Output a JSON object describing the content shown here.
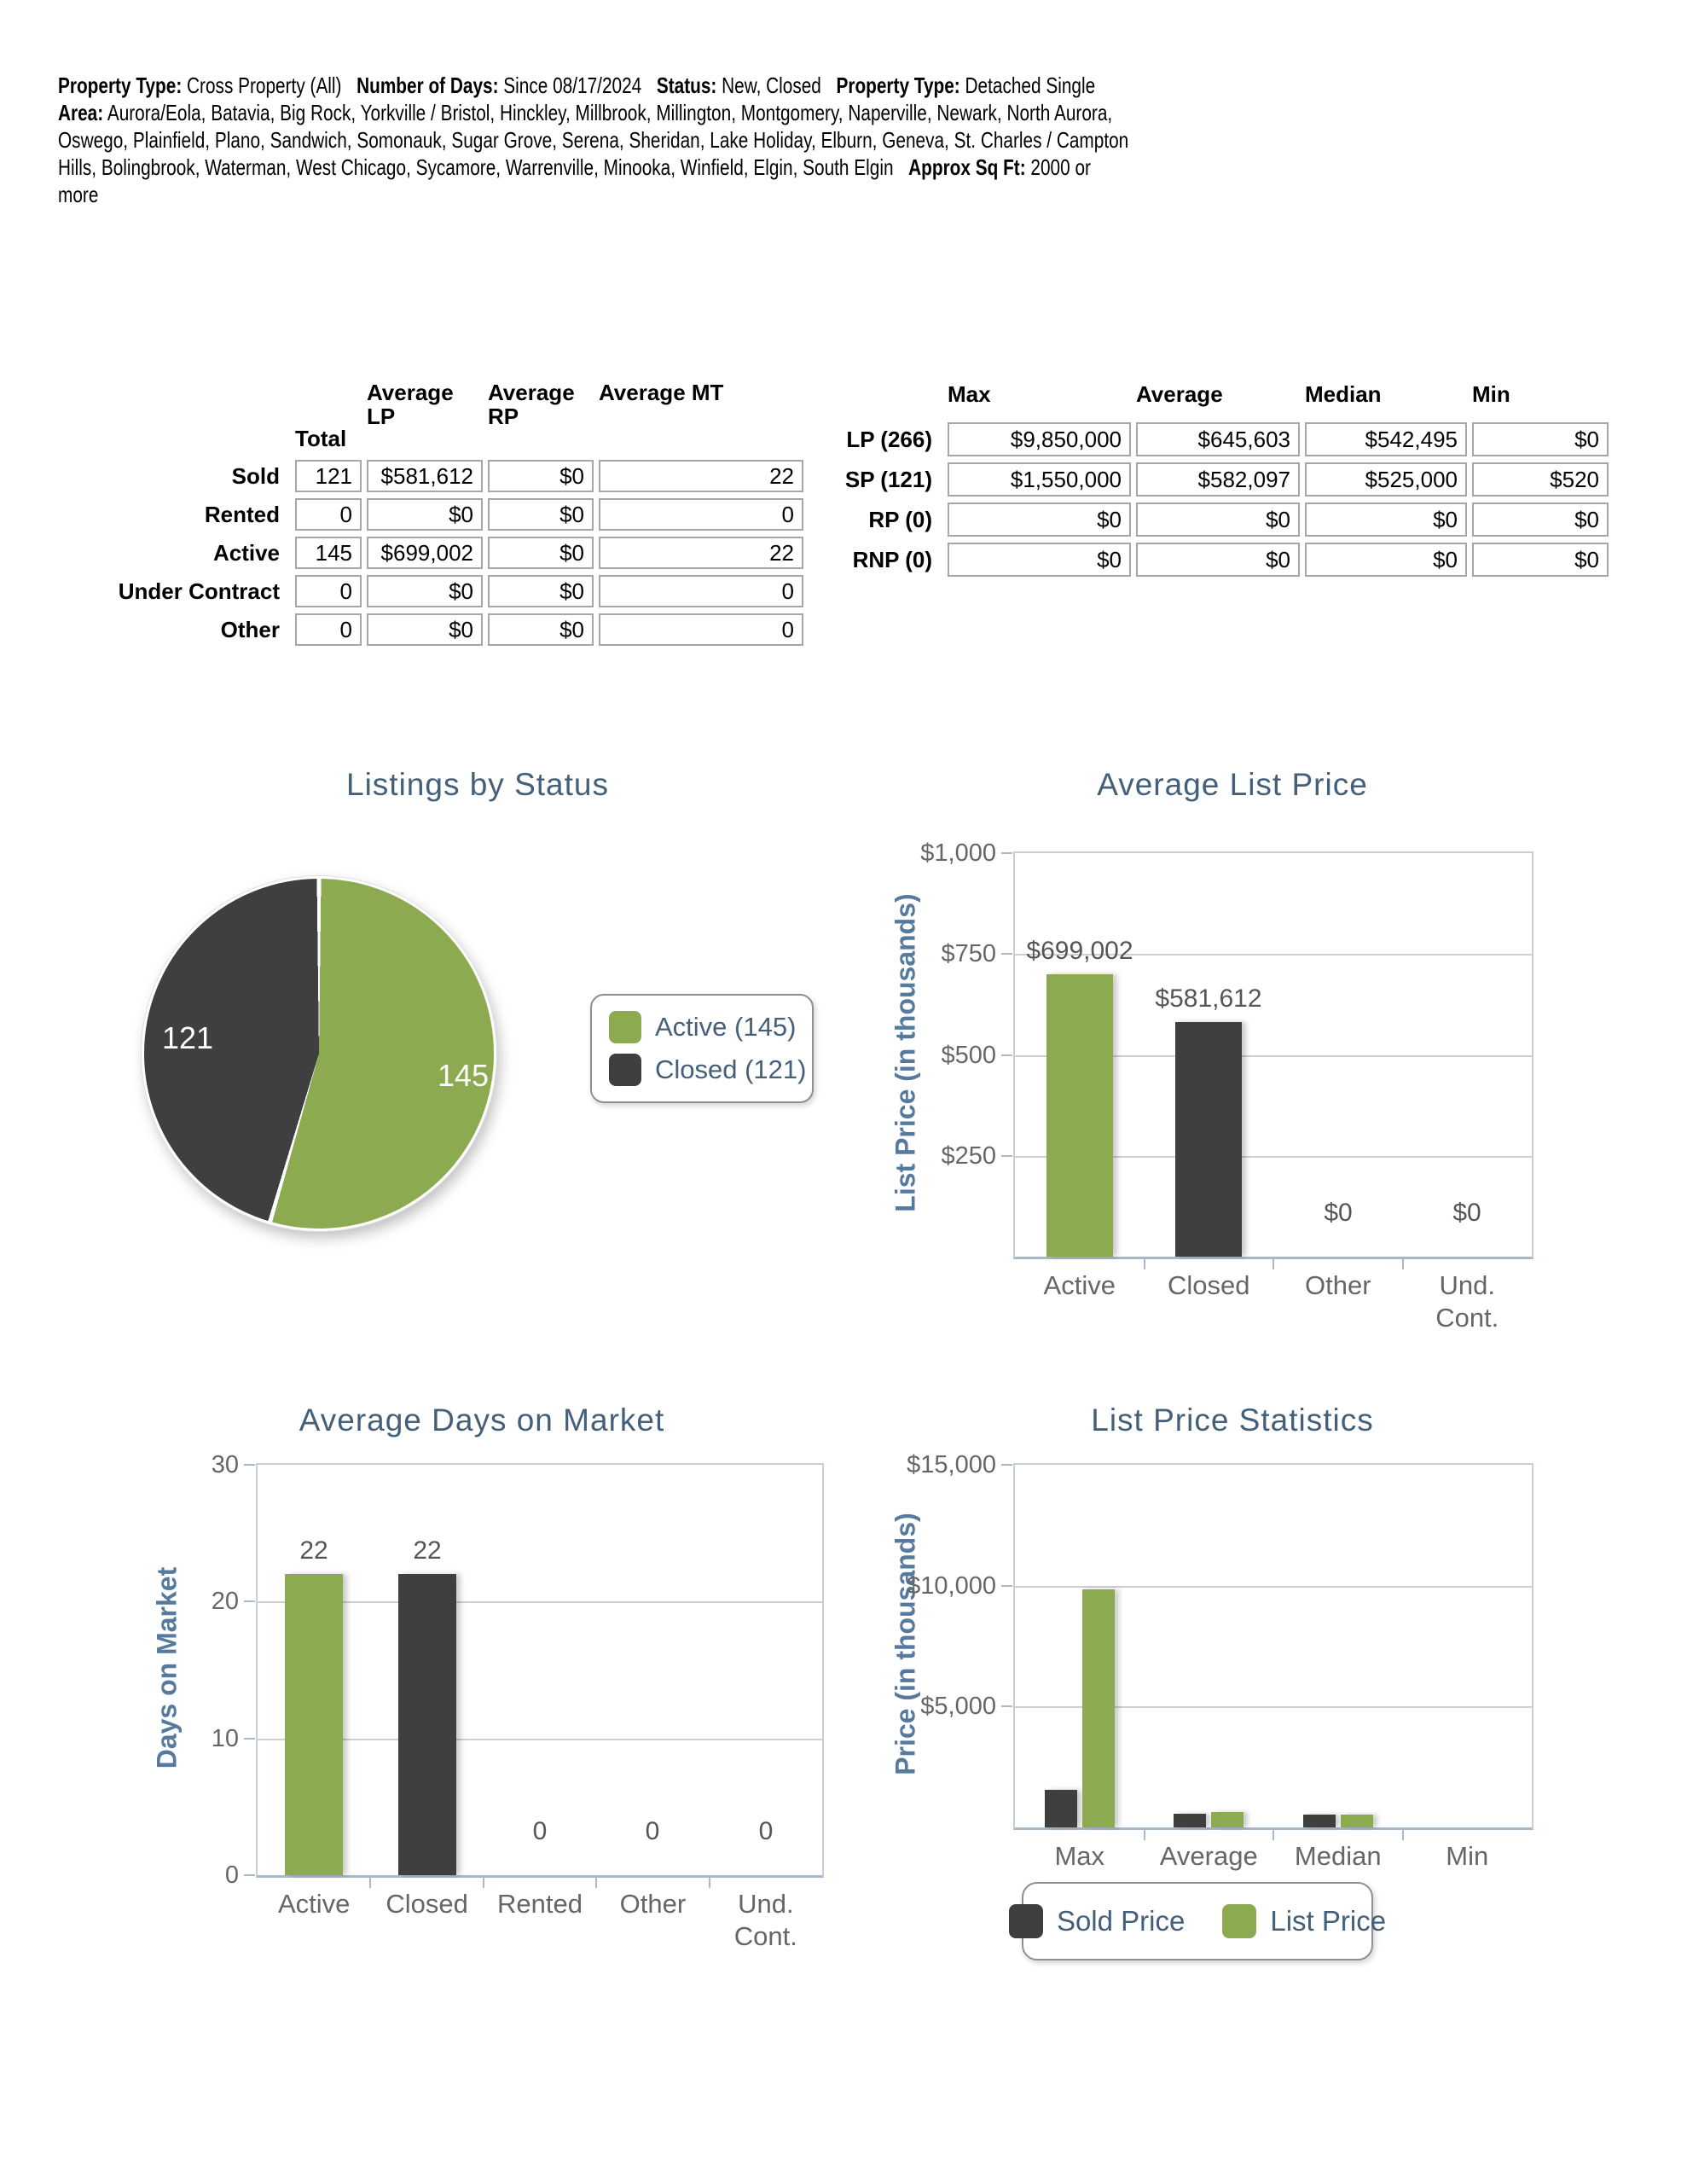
{
  "header": {
    "lines": [
      [
        {
          "b": true,
          "t": "Property Type:"
        },
        {
          "t": " Cross Property (All)",
          "gap": true
        },
        {
          "b": true,
          "t": "Number of Days:"
        },
        {
          "t": " Since 08/17/2024",
          "gap": true
        },
        {
          "b": true,
          "t": "Status:"
        },
        {
          "t": " New, Closed",
          "gap": true
        },
        {
          "b": true,
          "t": "Property Type:"
        },
        {
          "t": " Detached Single"
        }
      ],
      [
        {
          "b": true,
          "t": "Area:"
        },
        {
          "t": " Aurora/Eola, Batavia, Big Rock, Yorkville / Bristol, Hinckley, Millbrook, Millington, Montgomery, Naperville, Newark, North Aurora,"
        }
      ],
      [
        {
          "t": "Oswego, Plainfield, Plano, Sandwich, Somonauk, Sugar Grove, Serena, Sheridan, Lake Holiday, Elburn, Geneva, St. Charles / Campton"
        }
      ],
      [
        {
          "t": "Hills, Bolingbrook, Waterman, West Chicago, Sycamore, Warrenville, Minooka, Winfield, Elgin, South Elgin",
          "gap": true
        },
        {
          "b": true,
          "t": "Approx Sq Ft:"
        },
        {
          "t": " 2000 or"
        }
      ],
      [
        {
          "t": "more"
        }
      ]
    ]
  },
  "status_table": {
    "columns": [
      "Total",
      "Average LP",
      "Average RP",
      "Average MT"
    ],
    "rows": [
      {
        "label": "Sold",
        "values": [
          "121",
          "$581,612",
          "$0",
          "22"
        ]
      },
      {
        "label": "Rented",
        "values": [
          "0",
          "$0",
          "$0",
          "0"
        ]
      },
      {
        "label": "Active",
        "values": [
          "145",
          "$699,002",
          "$0",
          "22"
        ]
      },
      {
        "label": "Under Contract",
        "values": [
          "0",
          "$0",
          "$0",
          "0"
        ]
      },
      {
        "label": "Other",
        "values": [
          "0",
          "$0",
          "$0",
          "0"
        ]
      }
    ]
  },
  "price_table": {
    "columns": [
      "Max",
      "Average",
      "Median",
      "Min"
    ],
    "rows": [
      {
        "label": "LP (266)",
        "values": [
          "$9,850,000",
          "$645,603",
          "$542,495",
          "$0"
        ]
      },
      {
        "label": "SP (121)",
        "values": [
          "$1,550,000",
          "$582,097",
          "$525,000",
          "$520"
        ]
      },
      {
        "label": "RP (0)",
        "values": [
          "$0",
          "$0",
          "$0",
          "$0"
        ]
      },
      {
        "label": "RNP (0)",
        "values": [
          "$0",
          "$0",
          "$0",
          "$0"
        ]
      }
    ]
  },
  "colors": {
    "green": "#8cab50",
    "dark": "#3f3f3f",
    "title_blue": "#435f7a",
    "axis_title_blue": "#567a9e",
    "tick_gray": "#666666",
    "grid_gray": "#cfcfcf",
    "plot_border": "#c6cfd8"
  },
  "chart_data": [
    {
      "type": "pie",
      "title": "Listings by Status",
      "slices": [
        {
          "label": "Active",
          "value": 145,
          "display": "145",
          "color": "#8cab50"
        },
        {
          "label": "Closed",
          "value": 121,
          "display": "121",
          "color": "#3f3f3f"
        }
      ],
      "legend": [
        {
          "label": "Active (145)",
          "color": "#8cab50"
        },
        {
          "label": "Closed (121)",
          "color": "#3f3f3f"
        }
      ],
      "legend_position": "right"
    },
    {
      "type": "bar",
      "title": "Average List Price",
      "ylabel": "List Price (in thousands)",
      "ylim": [
        0,
        1000
      ],
      "yticks": [
        {
          "value": 1000,
          "label": "$1,000"
        },
        {
          "value": 750,
          "label": "$750"
        },
        {
          "value": 500,
          "label": "$500"
        },
        {
          "value": 250,
          "label": "$250"
        }
      ],
      "categories": [
        "Active",
        "Closed",
        "Other",
        "Und.\nCont."
      ],
      "values": [
        699.002,
        581.612,
        0,
        0
      ],
      "bar_labels": [
        "$699,002",
        "$581,612",
        "$0",
        "$0"
      ],
      "bar_colors": [
        "#8cab50",
        "#3f3f3f",
        "#8cab50",
        "#8cab50"
      ],
      "grid": true
    },
    {
      "type": "bar",
      "title": "Average Days on Market",
      "ylabel": "Days on Market",
      "ylim": [
        0,
        30
      ],
      "yticks": [
        {
          "value": 30,
          "label": "30"
        },
        {
          "value": 20,
          "label": "20"
        },
        {
          "value": 10,
          "label": "10"
        },
        {
          "value": 0,
          "label": "0"
        }
      ],
      "categories": [
        "Active",
        "Closed",
        "Rented",
        "Other",
        "Und.\nCont."
      ],
      "values": [
        22,
        22,
        0,
        0,
        0
      ],
      "bar_labels": [
        "22",
        "22",
        "0",
        "0",
        "0"
      ],
      "bar_colors": [
        "#8cab50",
        "#3f3f3f",
        "#8cab50",
        "#8cab50",
        "#8cab50"
      ],
      "grid": true
    },
    {
      "type": "bar",
      "title": "List Price Statistics",
      "ylabel": "Price (in thousands)",
      "ylim": [
        0,
        15000
      ],
      "yticks": [
        {
          "value": 15000,
          "label": "$15,000"
        },
        {
          "value": 10000,
          "label": "$10,000"
        },
        {
          "value": 5000,
          "label": "$5,000"
        }
      ],
      "categories": [
        "Max",
        "Average",
        "Median",
        "Min"
      ],
      "series": [
        {
          "name": "Sold Price",
          "color": "#3f3f3f",
          "values": [
            1550,
            582.097,
            525,
            0.52
          ]
        },
        {
          "name": "List Price",
          "color": "#8cab50",
          "values": [
            9850,
            645.603,
            542.495,
            0
          ]
        }
      ],
      "legend": [
        "Sold Price",
        "List Price"
      ],
      "legend_position": "bottom",
      "grid": true
    }
  ]
}
